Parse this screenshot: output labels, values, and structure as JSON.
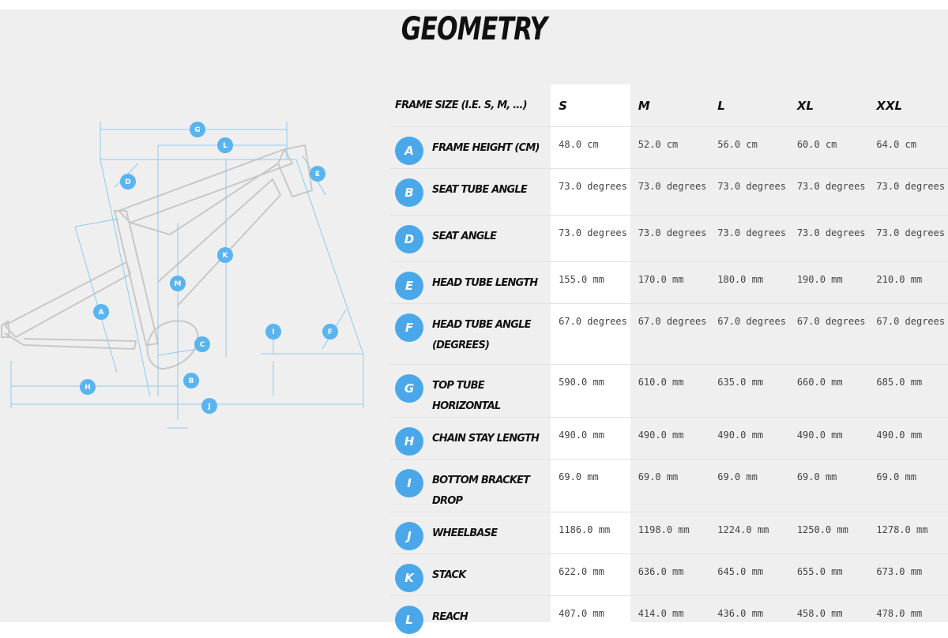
{
  "title": "GEOMETRY",
  "accent_color": "#4aa8ea",
  "diagram": {
    "markers": [
      "G",
      "L",
      "D",
      "E",
      "K",
      "M",
      "A",
      "C",
      "I",
      "F",
      "H",
      "B",
      "J"
    ]
  },
  "table": {
    "frame_size_label": "FRAME SIZE (I.E. S, M, ...)",
    "selected_size": "S",
    "sizes": [
      "S",
      "M",
      "L",
      "XL",
      "XXL"
    ],
    "rows": [
      {
        "code": "A",
        "label": "FRAME HEIGHT (CM)",
        "values": [
          "48.0 cm",
          "52.0 cm",
          "56.0 cm",
          "60.0 cm",
          "64.0 cm"
        ]
      },
      {
        "code": "B",
        "label": "SEAT TUBE ANGLE",
        "values": [
          "73.0 degrees",
          "73.0 degrees",
          "73.0 degrees",
          "73.0 degrees",
          "73.0 degrees"
        ]
      },
      {
        "code": "D",
        "label": "SEAT ANGLE",
        "values": [
          "73.0 degrees",
          "73.0 degrees",
          "73.0 degrees",
          "73.0 degrees",
          "73.0 degrees"
        ]
      },
      {
        "code": "E",
        "label": "HEAD TUBE LENGTH",
        "values": [
          "155.0 mm",
          "170.0 mm",
          "180.0 mm",
          "190.0 mm",
          "210.0 mm"
        ]
      },
      {
        "code": "F",
        "label": "HEAD TUBE ANGLE (DEGREES)",
        "values": [
          "67.0 degrees",
          "67.0 degrees",
          "67.0 degrees",
          "67.0 degrees",
          "67.0 degrees"
        ]
      },
      {
        "code": "G",
        "label": "TOP TUBE HORIZONTAL",
        "values": [
          "590.0 mm",
          "610.0 mm",
          "635.0 mm",
          "660.0 mm",
          "685.0 mm"
        ]
      },
      {
        "code": "H",
        "label": "CHAIN STAY LENGTH",
        "values": [
          "490.0 mm",
          "490.0 mm",
          "490.0 mm",
          "490.0 mm",
          "490.0 mm"
        ]
      },
      {
        "code": "I",
        "label": "BOTTOM BRACKET DROP",
        "values": [
          "69.0 mm",
          "69.0 mm",
          "69.0 mm",
          "69.0 mm",
          "69.0 mm"
        ]
      },
      {
        "code": "J",
        "label": "WHEELBASE",
        "values": [
          "1186.0 mm",
          "1198.0 mm",
          "1224.0 mm",
          "1250.0 mm",
          "1278.0 mm"
        ]
      },
      {
        "code": "K",
        "label": "STACK",
        "values": [
          "622.0 mm",
          "636.0 mm",
          "645.0 mm",
          "655.0 mm",
          "673.0 mm"
        ]
      },
      {
        "code": "L",
        "label": "REACH",
        "values": [
          "407.0 mm",
          "414.0 mm",
          "436.0 mm",
          "458.0 mm",
          "478.0 mm"
        ]
      }
    ]
  }
}
